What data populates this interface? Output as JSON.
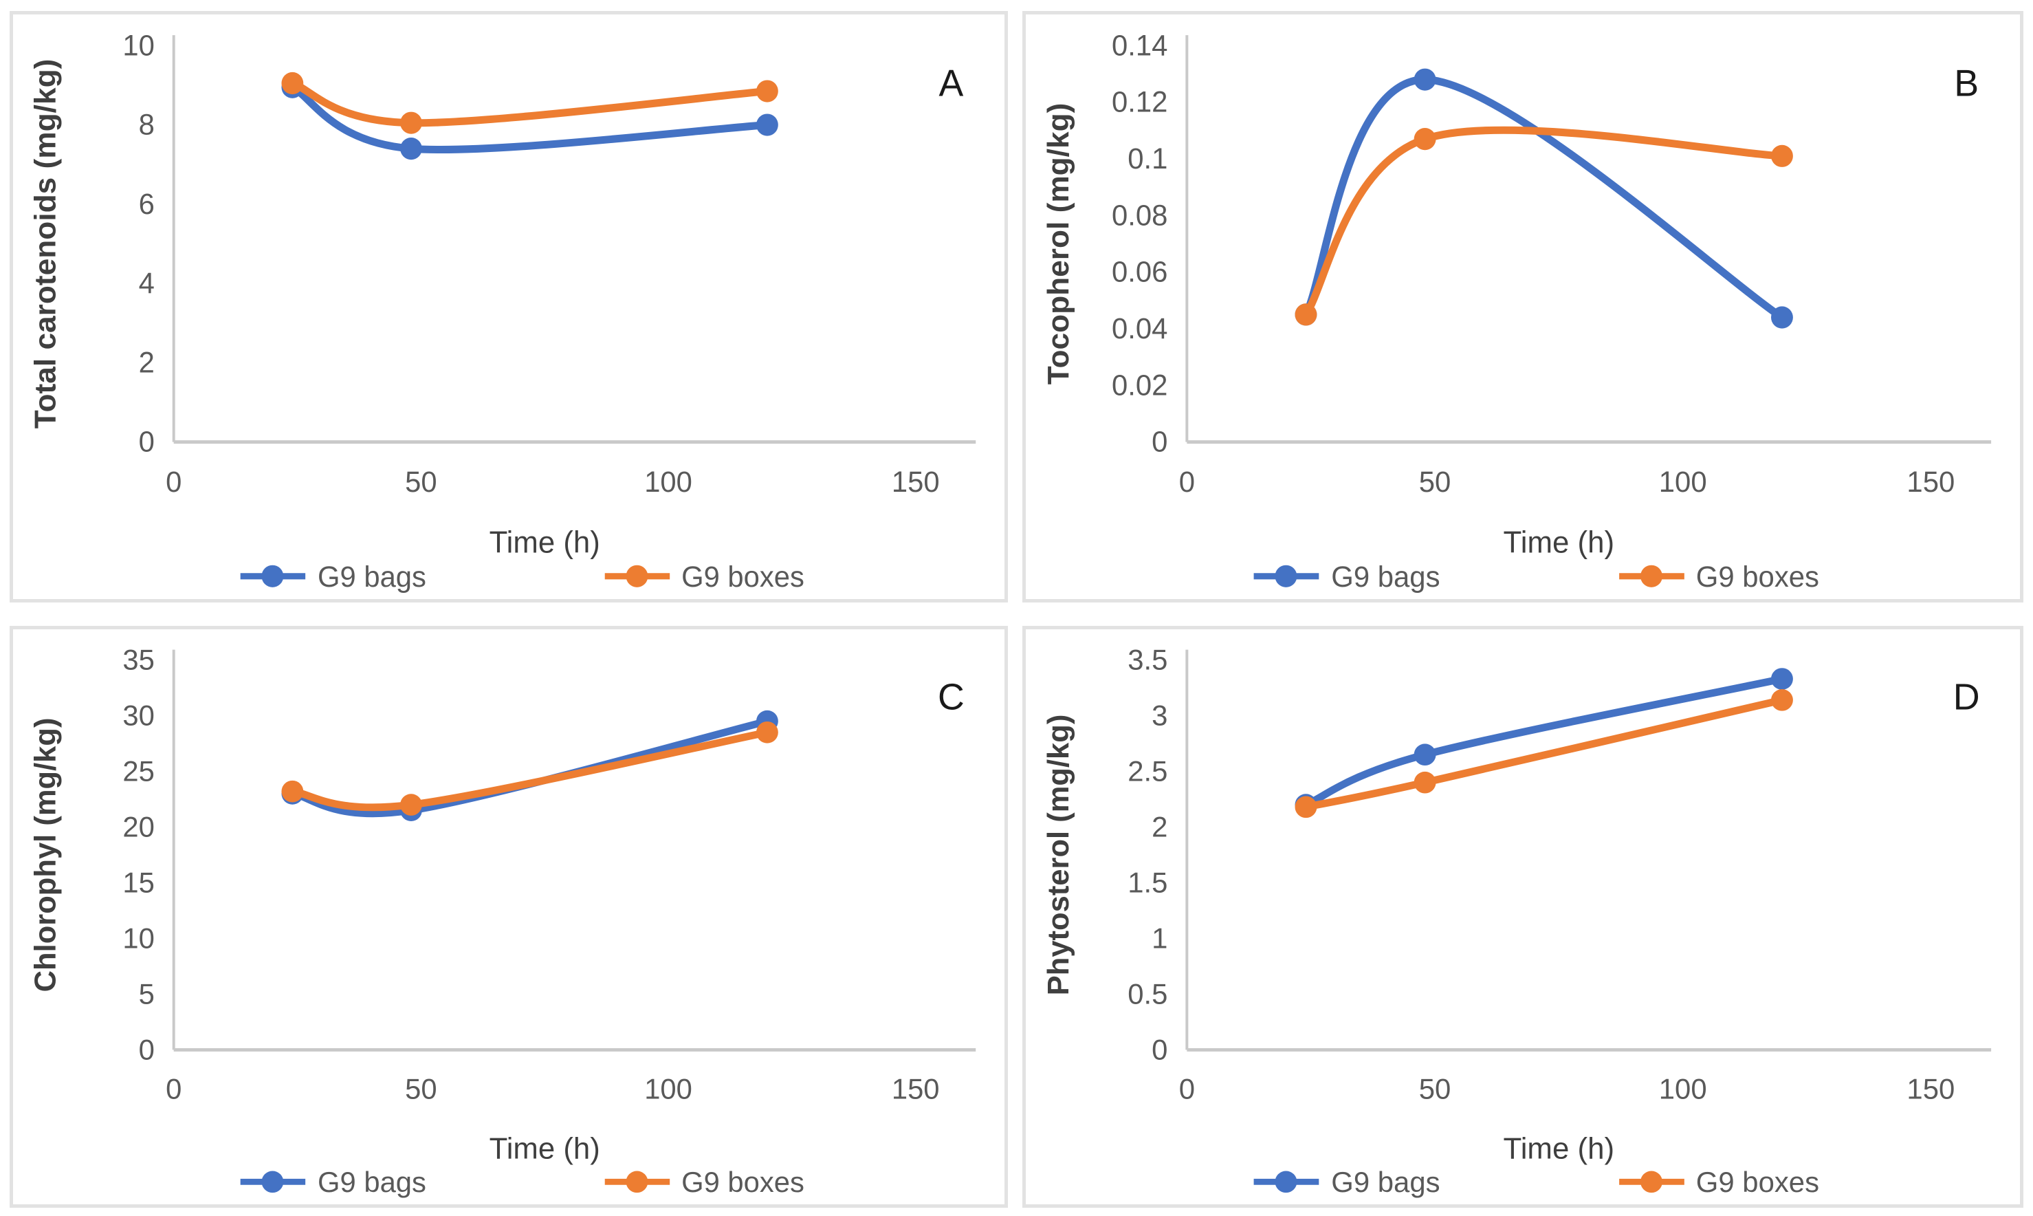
{
  "figure": {
    "type": "multi-panel-line-charts",
    "panel_letters": [
      "A",
      "B",
      "C",
      "D"
    ]
  },
  "colors": {
    "series_bags": "#4472C4",
    "series_boxes": "#ED7D31",
    "axis_line": "#c9c9c9",
    "tick_text": "#595959",
    "axis_title_text": "#3f3f3f",
    "letter_text": "#1a1a1a",
    "panel_border": "#e2e2e2",
    "background": "#ffffff"
  },
  "legend": {
    "items": [
      {
        "label": "G9 bags",
        "color_key": "series_bags"
      },
      {
        "label": "G9 boxes",
        "color_key": "series_boxes"
      }
    ]
  },
  "chart_data": [
    {
      "type": "line",
      "letter": "A",
      "title": "",
      "xlabel": "Time (h)",
      "ylabel": "Total carotenoids (mg/kg)",
      "x": [
        24,
        48,
        120
      ],
      "xlim": [
        0,
        150
      ],
      "xticks": [
        0,
        50,
        100,
        150
      ],
      "xtick_labels": [
        "0",
        "50",
        "100",
        "150"
      ],
      "ylim": [
        0,
        10
      ],
      "yticks": [
        0,
        2,
        4,
        6,
        8,
        10
      ],
      "ytick_labels": [
        "0",
        "2",
        "4",
        "6",
        "8",
        "10"
      ],
      "grid": false,
      "smooth": true,
      "legend_position": "bottom",
      "series": [
        {
          "name": "G9 bags",
          "color_key": "series_bags",
          "values": [
            8.95,
            7.4,
            8.0
          ]
        },
        {
          "name": "G9 boxes",
          "color_key": "series_boxes",
          "values": [
            9.05,
            8.05,
            8.85
          ]
        }
      ]
    },
    {
      "type": "line",
      "letter": "B",
      "title": "",
      "xlabel": "Time (h)",
      "ylabel": "Tocopherol (mg/kg)",
      "x": [
        24,
        48,
        120
      ],
      "xlim": [
        0,
        150
      ],
      "xticks": [
        0,
        50,
        100,
        150
      ],
      "xtick_labels": [
        "0",
        "50",
        "100",
        "150"
      ],
      "ylim": [
        0,
        0.14
      ],
      "yticks": [
        0,
        0.02,
        0.04,
        0.06,
        0.08,
        0.1,
        0.12,
        0.14
      ],
      "ytick_labels": [
        "0",
        "0.02",
        "0.04",
        "0.06",
        "0.08",
        "0.1",
        "0.12",
        "0.14"
      ],
      "grid": false,
      "smooth": true,
      "legend_position": "bottom",
      "series": [
        {
          "name": "G9 bags",
          "color_key": "series_bags",
          "values": [
            0.045,
            0.128,
            0.044
          ]
        },
        {
          "name": "G9 boxes",
          "color_key": "series_boxes",
          "values": [
            0.045,
            0.107,
            0.101
          ]
        }
      ]
    },
    {
      "type": "line",
      "letter": "C",
      "title": "",
      "xlabel": "Time (h)",
      "ylabel": "Chlorophyl (mg/kg)",
      "x": [
        24,
        48,
        120
      ],
      "xlim": [
        0,
        150
      ],
      "xticks": [
        0,
        50,
        100,
        150
      ],
      "xtick_labels": [
        "0",
        "50",
        "100",
        "150"
      ],
      "ylim": [
        0,
        35
      ],
      "yticks": [
        0,
        5,
        10,
        15,
        20,
        25,
        30,
        35
      ],
      "ytick_labels": [
        "0",
        "5",
        "10",
        "15",
        "20",
        "25",
        "30",
        "35"
      ],
      "grid": false,
      "smooth": true,
      "legend_position": "bottom",
      "series": [
        {
          "name": "G9 bags",
          "color_key": "series_bags",
          "values": [
            23.0,
            21.5,
            29.5
          ]
        },
        {
          "name": "G9 boxes",
          "color_key": "series_boxes",
          "values": [
            23.2,
            22.0,
            28.5
          ]
        }
      ]
    },
    {
      "type": "line",
      "letter": "D",
      "title": "",
      "xlabel": "Time (h)",
      "ylabel": "Phytosterol (mg/kg)",
      "x": [
        24,
        48,
        120
      ],
      "xlim": [
        0,
        150
      ],
      "xticks": [
        0,
        50,
        100,
        150
      ],
      "xtick_labels": [
        "0",
        "50",
        "100",
        "150"
      ],
      "ylim": [
        0,
        3.5
      ],
      "yticks": [
        0,
        0.5,
        1,
        1.5,
        2,
        2.5,
        3,
        3.5
      ],
      "ytick_labels": [
        "0",
        "0.5",
        "1",
        "1.5",
        "2",
        "2.5",
        "3",
        "3.5"
      ],
      "grid": false,
      "smooth": true,
      "legend_position": "bottom",
      "series": [
        {
          "name": "G9 bags",
          "color_key": "series_bags",
          "values": [
            2.2,
            2.65,
            3.33
          ]
        },
        {
          "name": "G9 boxes",
          "color_key": "series_boxes",
          "values": [
            2.18,
            2.4,
            3.14
          ]
        }
      ]
    }
  ]
}
